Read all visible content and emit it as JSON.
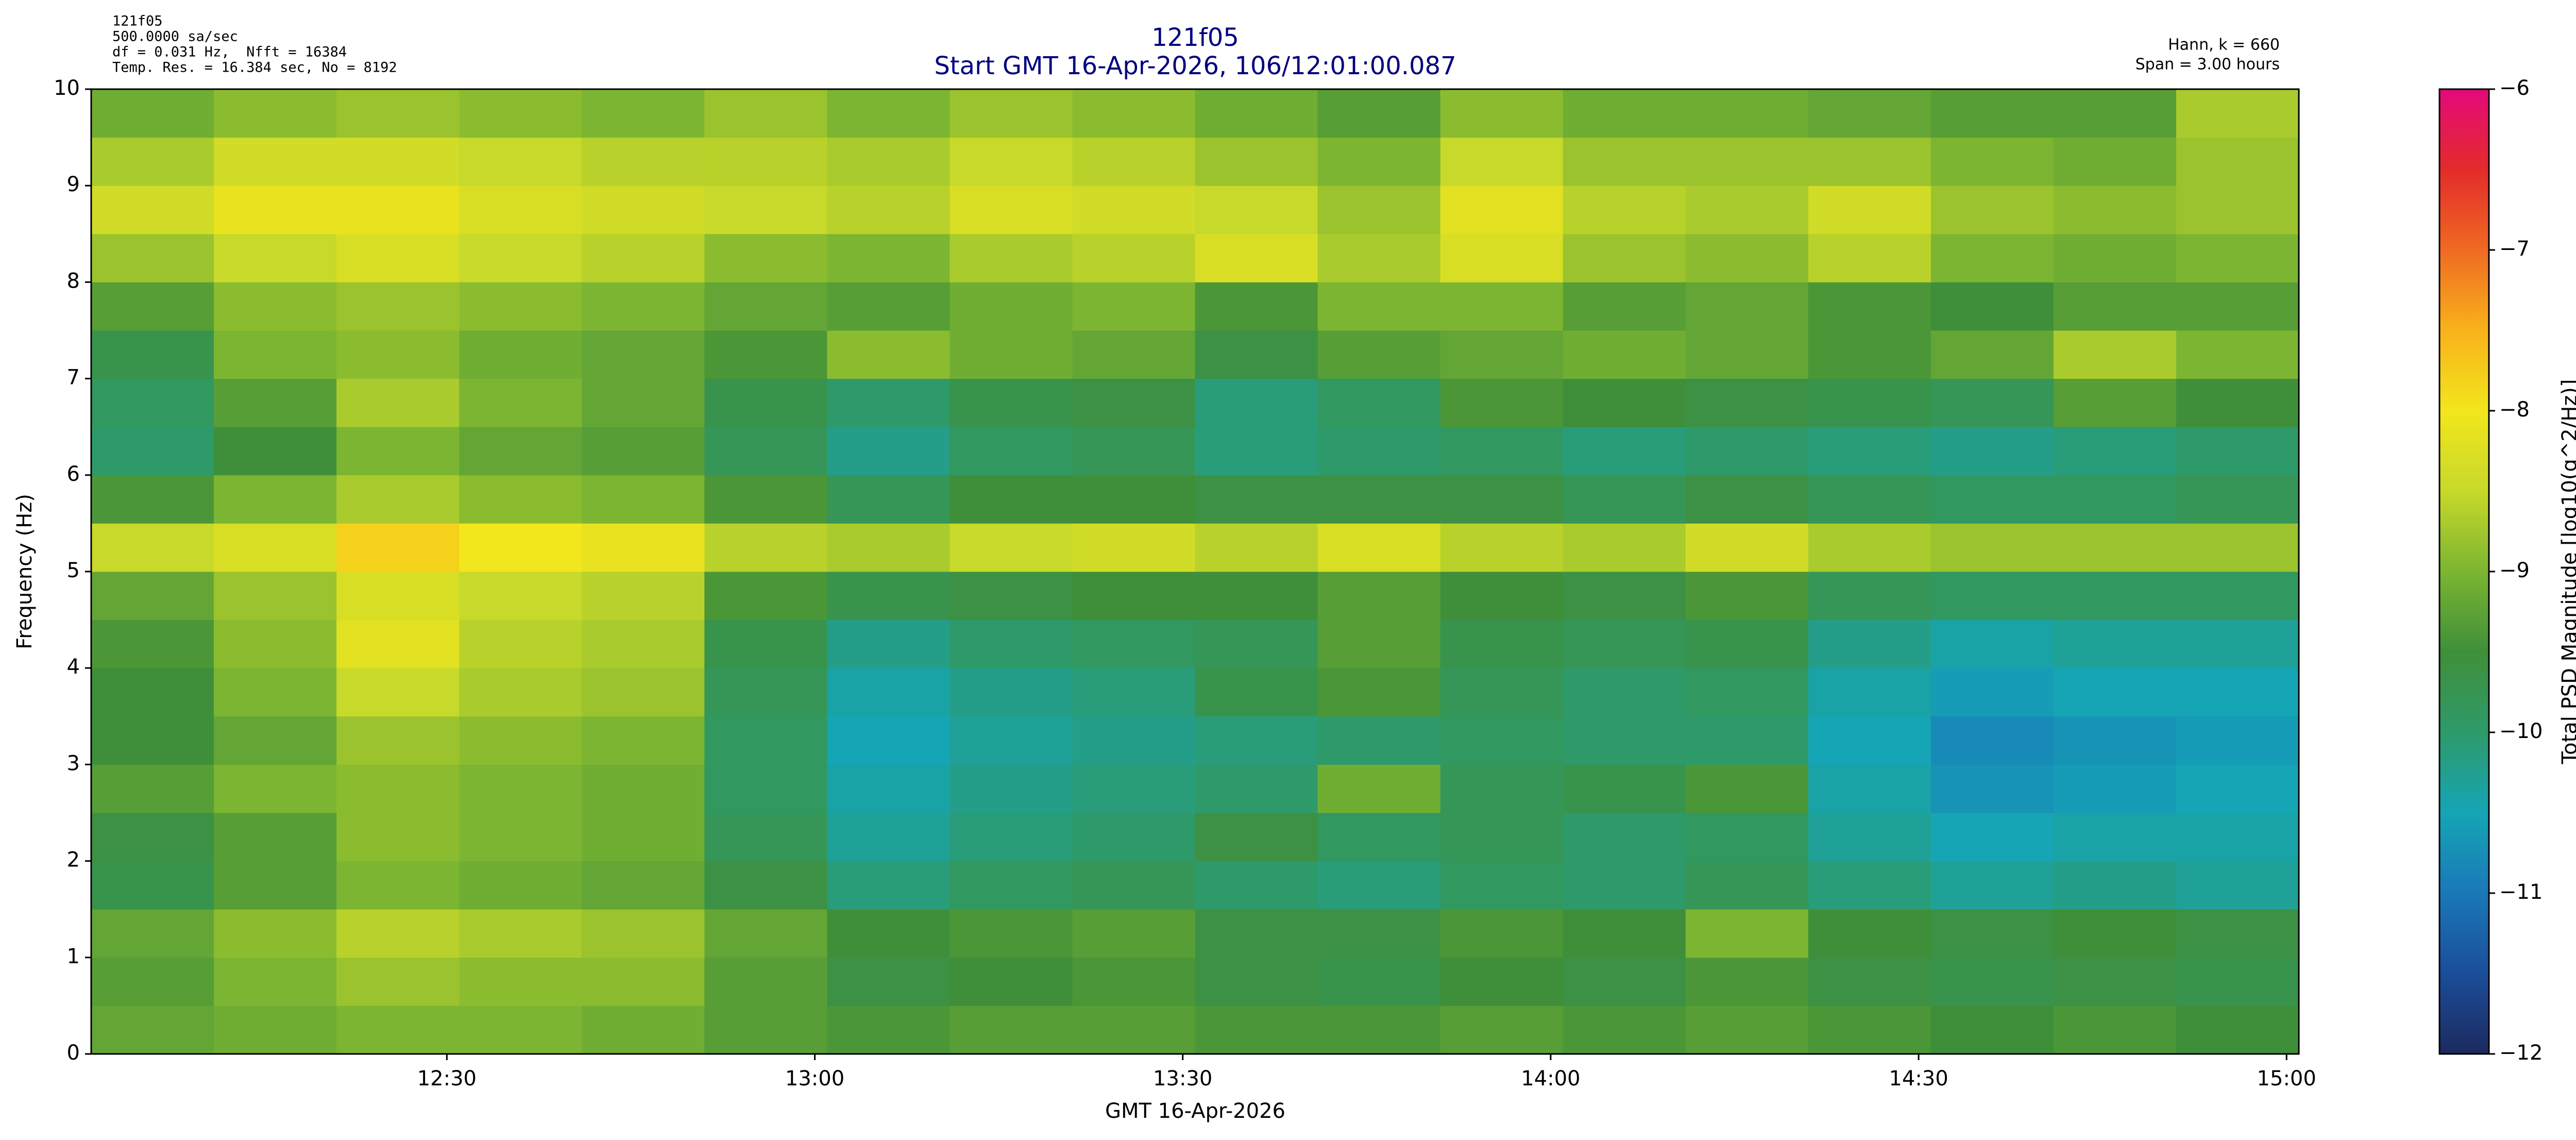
{
  "chart_data": {
    "type": "heatmap",
    "title": "121f05",
    "subtitle": "Start GMT 16-Apr-2026, 106/12:01:00.087",
    "annotations_left": [
      "121f05",
      "500.0000 sa/sec",
      "df = 0.031 Hz,  Nfft = 16384",
      "Temp. Res. = 16.384 sec, No = 8192"
    ],
    "annotations_right": [
      "Hann, k = 660",
      "Span = 3.00 hours"
    ],
    "xlabel": "GMT 16-Apr-2026",
    "ylabel": "Frequency (Hz)",
    "colorbar_label": "Total PSD Magnitude [log10(g^2/Hz)]",
    "xlim": [
      "12:01:00",
      "15:01:00"
    ],
    "xticks": [
      "12:30",
      "13:00",
      "13:30",
      "14:00",
      "14:30",
      "15:00"
    ],
    "ylim": [
      0,
      10
    ],
    "yticks": [
      0,
      1,
      2,
      3,
      4,
      5,
      6,
      7,
      8,
      9,
      10
    ],
    "clim": [
      -12,
      -6
    ],
    "cticks": [
      {
        "value": -6,
        "label": "−6"
      },
      {
        "value": -7,
        "label": "−7"
      },
      {
        "value": -8,
        "label": "−8"
      },
      {
        "value": -9,
        "label": "−9"
      },
      {
        "value": -10,
        "label": "−10"
      },
      {
        "value": -11,
        "label": "−11"
      },
      {
        "value": -12,
        "label": "−12"
      }
    ],
    "colormap": [
      "#1b2a5e",
      "#1b4d9a",
      "#1a78b8",
      "#15a5b5",
      "#2e9a6a",
      "#3f8f3a",
      "#7cb531",
      "#c7d92a",
      "#f2e61c",
      "#f9b21b",
      "#ef6a22",
      "#e32b2a",
      "#e4097a"
    ],
    "xbins": [
      "12:01:00",
      "12:11:00",
      "12:21:00",
      "12:31:00",
      "12:41:00",
      "12:51:00",
      "13:01:00",
      "13:11:00",
      "13:21:00",
      "13:31:00",
      "13:41:00",
      "13:51:00",
      "14:01:00",
      "14:11:00",
      "14:21:00",
      "14:31:00",
      "14:41:00",
      "14:51:00",
      "15:01:00"
    ],
    "ybins": [
      0,
      0.5,
      1,
      1.5,
      2,
      2.5,
      3,
      3.5,
      4,
      4.5,
      5,
      5.5,
      6,
      6.5,
      7,
      7.5,
      8,
      8.5,
      9,
      9.5,
      10
    ],
    "z": [
      [
        -9.2,
        -9.1,
        -9.0,
        -9.0,
        -9.1,
        -9.3,
        -9.4,
        -9.3,
        -9.3,
        -9.4,
        -9.4,
        -9.3,
        -9.4,
        -9.3,
        -9.4,
        -9.5,
        -9.4,
        -9.5
      ],
      [
        -9.3,
        -9.0,
        -8.8,
        -8.9,
        -8.9,
        -9.3,
        -9.6,
        -9.5,
        -9.4,
        -9.6,
        -9.7,
        -9.5,
        -9.6,
        -9.4,
        -9.6,
        -9.7,
        -9.6,
        -9.7
      ],
      [
        -9.2,
        -8.9,
        -8.6,
        -8.7,
        -8.8,
        -9.2,
        -9.5,
        -9.4,
        -9.3,
        -9.6,
        -9.6,
        -9.4,
        -9.5,
        -9.0,
        -9.5,
        -9.6,
        -9.5,
        -9.6
      ],
      [
        -9.7,
        -9.3,
        -9.0,
        -9.1,
        -9.2,
        -9.6,
        -10.1,
        -9.9,
        -9.8,
        -10.0,
        -10.1,
        -9.9,
        -10.0,
        -9.8,
        -10.1,
        -10.3,
        -10.2,
        -10.3
      ],
      [
        -9.6,
        -9.3,
        -8.9,
        -9.0,
        -9.1,
        -9.8,
        -10.3,
        -10.1,
        -10.0,
        -9.6,
        -9.9,
        -9.8,
        -10.0,
        -9.9,
        -10.3,
        -10.5,
        -10.4,
        -10.4
      ],
      [
        -9.3,
        -9.0,
        -8.9,
        -9.0,
        -9.1,
        -9.9,
        -10.4,
        -10.2,
        -10.1,
        -10.0,
        -9.1,
        -9.8,
        -9.7,
        -9.4,
        -10.4,
        -10.7,
        -10.6,
        -10.5
      ],
      [
        -9.5,
        -9.2,
        -8.8,
        -8.9,
        -9.0,
        -9.9,
        -10.5,
        -10.3,
        -10.2,
        -10.1,
        -10.0,
        -9.9,
        -10.0,
        -10.0,
        -10.5,
        -10.8,
        -10.7,
        -10.6
      ],
      [
        -9.5,
        -9.0,
        -8.5,
        -8.7,
        -8.8,
        -9.8,
        -10.4,
        -10.2,
        -10.1,
        -9.7,
        -9.4,
        -9.8,
        -10.0,
        -9.9,
        -10.4,
        -10.6,
        -10.5,
        -10.5
      ],
      [
        -9.4,
        -8.9,
        -8.2,
        -8.6,
        -8.7,
        -9.7,
        -10.2,
        -10.0,
        -9.9,
        -9.8,
        -9.3,
        -9.7,
        -9.8,
        -9.7,
        -10.2,
        -10.4,
        -10.3,
        -10.3
      ],
      [
        -9.2,
        -8.8,
        -8.3,
        -8.5,
        -8.6,
        -9.4,
        -9.7,
        -9.6,
        -9.5,
        -9.5,
        -9.3,
        -9.5,
        -9.6,
        -9.4,
        -9.8,
        -9.9,
        -9.9,
        -9.9
      ],
      [
        -8.5,
        -8.3,
        -7.8,
        -8.0,
        -8.1,
        -8.6,
        -8.7,
        -8.5,
        -8.4,
        -8.6,
        -8.3,
        -8.6,
        -8.7,
        -8.4,
        -8.7,
        -8.8,
        -8.8,
        -8.8
      ],
      [
        -9.4,
        -9.0,
        -8.7,
        -8.9,
        -9.0,
        -9.4,
        -9.8,
        -9.5,
        -9.5,
        -9.6,
        -9.6,
        -9.6,
        -9.8,
        -9.6,
        -9.8,
        -9.9,
        -9.9,
        -9.8
      ],
      [
        -10.0,
        -9.5,
        -9.0,
        -9.2,
        -9.3,
        -9.8,
        -10.2,
        -9.9,
        -9.8,
        -10.1,
        -10.0,
        -9.9,
        -10.1,
        -10.0,
        -10.1,
        -10.2,
        -10.1,
        -10.0
      ],
      [
        -9.9,
        -9.3,
        -8.7,
        -9.0,
        -9.2,
        -9.7,
        -10.0,
        -9.7,
        -9.6,
        -10.1,
        -9.9,
        -9.4,
        -9.5,
        -9.6,
        -9.7,
        -9.8,
        -9.3,
        -9.5
      ],
      [
        -9.7,
        -9.0,
        -8.9,
        -9.1,
        -9.2,
        -9.4,
        -8.9,
        -9.1,
        -9.2,
        -9.6,
        -9.3,
        -9.2,
        -9.1,
        -9.2,
        -9.4,
        -9.2,
        -8.7,
        -9.0
      ],
      [
        -9.3,
        -8.9,
        -8.8,
        -8.9,
        -9.0,
        -9.2,
        -9.3,
        -9.1,
        -9.0,
        -9.4,
        -9.0,
        -9.0,
        -9.3,
        -9.2,
        -9.4,
        -9.5,
        -9.3,
        -9.3
      ],
      [
        -8.8,
        -8.5,
        -8.3,
        -8.5,
        -8.6,
        -8.9,
        -9.0,
        -8.7,
        -8.6,
        -8.3,
        -8.7,
        -8.3,
        -8.8,
        -8.9,
        -8.6,
        -9.0,
        -9.1,
        -9.0
      ],
      [
        -8.4,
        -8.1,
        -8.1,
        -8.3,
        -8.4,
        -8.5,
        -8.6,
        -8.3,
        -8.4,
        -8.5,
        -8.8,
        -8.2,
        -8.6,
        -8.7,
        -8.4,
        -8.8,
        -8.9,
        -8.8
      ],
      [
        -8.7,
        -8.4,
        -8.4,
        -8.5,
        -8.6,
        -8.6,
        -8.7,
        -8.5,
        -8.6,
        -8.8,
        -9.0,
        -8.5,
        -8.8,
        -8.8,
        -8.8,
        -9.0,
        -9.1,
        -8.8
      ],
      [
        -9.1,
        -8.9,
        -8.8,
        -8.9,
        -9.0,
        -8.8,
        -9.0,
        -8.8,
        -8.9,
        -9.1,
        -9.3,
        -8.9,
        -9.1,
        -9.1,
        -9.2,
        -9.3,
        -9.3,
        -8.7
      ]
    ]
  }
}
